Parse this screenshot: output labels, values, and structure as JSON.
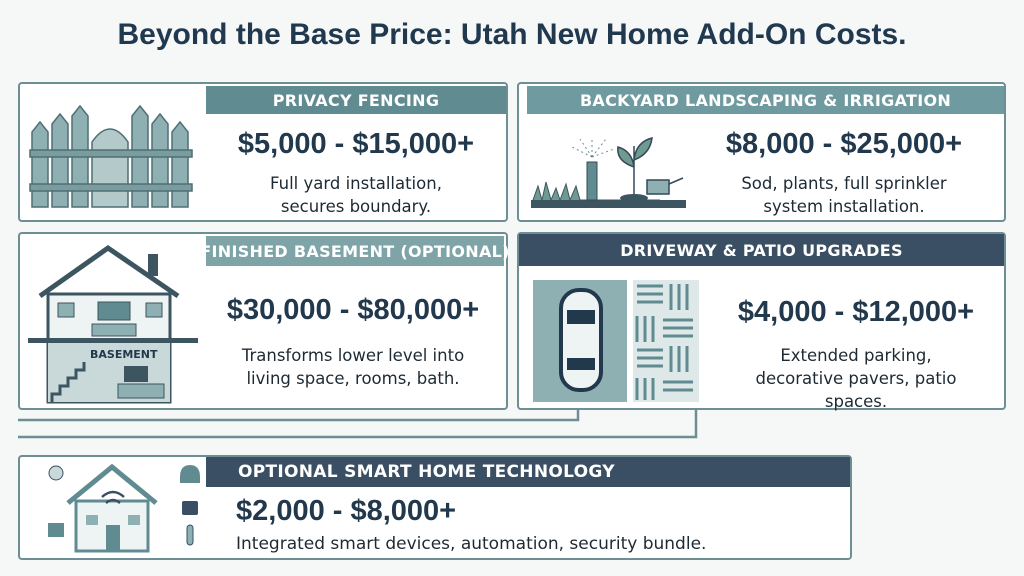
{
  "title": "Beyond the Base Price: Utah New Home Add-On Costs.",
  "cards": [
    {
      "heading": "PRIVACY FENCING",
      "price": "$5,000 - $15,000+",
      "description": [
        "Full yard installation,",
        "secures boundary."
      ]
    },
    {
      "heading": "BACKYARD LANDSCAPING & IRRIGATION",
      "price": "$8,000 - $25,000+",
      "description": [
        "Sod, plants, full sprinkler",
        "system installation."
      ]
    },
    {
      "heading": "FINISHED BASEMENT (OPTIONAL)",
      "price": "$30,000 - $80,000+",
      "description": [
        "Transforms lower level into",
        "living space, rooms, bath."
      ],
      "illustration_label": "BASEMENT"
    },
    {
      "heading": "DRIVEWAY & PATIO UPGRADES",
      "price": "$4,000 - $12,000+",
      "description": [
        "Extended parking,",
        "decorative pavers, patio",
        "spaces."
      ]
    },
    {
      "heading": "OPTIONAL SMART HOME TECHNOLOGY",
      "price": "$2,000 - $8,000+",
      "description": [
        "Integrated smart devices, automation, security bundle."
      ]
    }
  ]
}
